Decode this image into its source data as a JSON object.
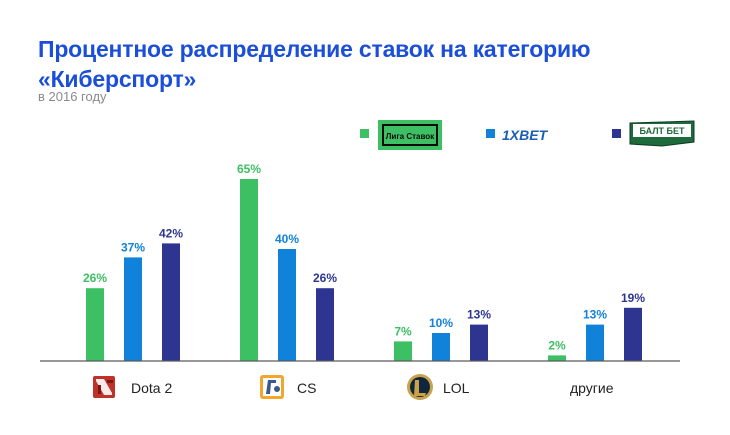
{
  "title": "Процентное распределение ставок на категорию «Киберспорт»",
  "subtitle": "в 2016 году",
  "colors": {
    "title": "#1c4fd8",
    "series": [
      "#3dbf63",
      "#1182d9",
      "#2e3591"
    ],
    "label_text": [
      "#3dbf63",
      "#1182d9",
      "#2e3591"
    ],
    "axis": "#5a5a5a"
  },
  "legend": {
    "items": [
      {
        "logo_text": "Лига Ставок",
        "icon": "liga-stavok-logo"
      },
      {
        "logo_text": "1XBET",
        "icon": "1xbet-logo"
      },
      {
        "logo_text": "БАЛТ БЕТ",
        "icon": "baltbet-logo"
      }
    ]
  },
  "category_icons": [
    "dota2-icon",
    "cs-icon",
    "lol-icon",
    ""
  ],
  "chart_data": {
    "type": "bar",
    "categories": [
      "Dota 2",
      "CS",
      "LOL",
      "другие"
    ],
    "series": [
      {
        "values": [
          26,
          65,
          7,
          2
        ],
        "labels": [
          "26%",
          "65%",
          "7%",
          "2%"
        ]
      },
      {
        "values": [
          37,
          40,
          10,
          13
        ],
        "labels": [
          "37%",
          "40%",
          "10%",
          "13%"
        ]
      },
      {
        "values": [
          42,
          26,
          13,
          19
        ],
        "labels": [
          "42%",
          "26%",
          "13%",
          "19%"
        ]
      }
    ],
    "ylim": [
      0,
      65
    ],
    "grid": false,
    "legend_position": "top-right"
  }
}
